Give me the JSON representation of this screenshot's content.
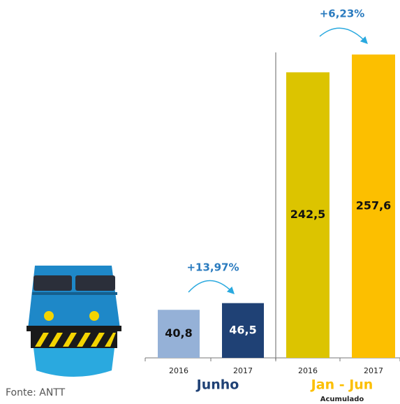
{
  "chart_data": {
    "type": "bar",
    "categories": [
      "2016",
      "2017",
      "2016",
      "2017"
    ],
    "values": [
      40.8,
      46.5,
      242.5,
      257.6
    ],
    "value_labels": [
      "40,8",
      "46,5",
      "242,5",
      "257,6"
    ],
    "colors": [
      "#95b1d7",
      "#1f4175",
      "#dcc400",
      "#fcbf00"
    ],
    "groups": [
      "Junho",
      "Jan - Jun"
    ],
    "group_colors": [
      "#1f4175",
      "#fcbf00"
    ],
    "group_subtitle": "Acumulado",
    "annotations": [
      "+13,97%",
      "+6,23%"
    ],
    "source": "Fonte: ANTT"
  }
}
